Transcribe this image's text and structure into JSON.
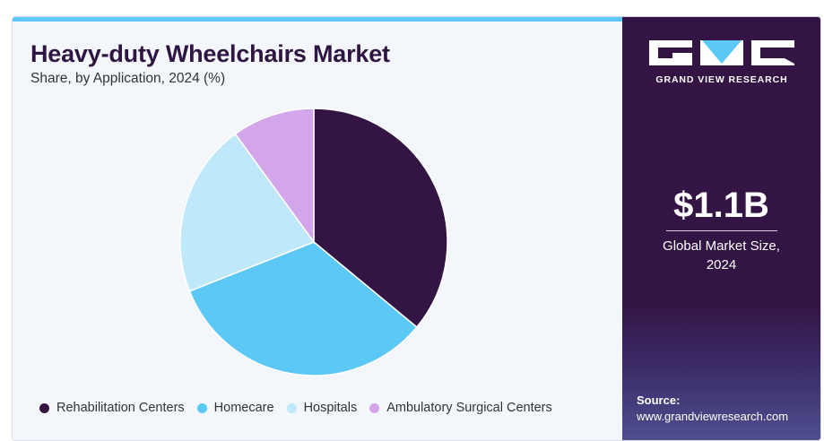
{
  "title": "Heavy-duty Wheelchairs Market",
  "subtitle": "Share, by Application, 2024 (%)",
  "brand": {
    "name": "GRAND VIEW RESEARCH",
    "logo_colors": [
      "#ffffff",
      "#5bc8f5"
    ]
  },
  "highlight": {
    "value": "$1.1B",
    "label_line1": "Global Market Size,",
    "label_line2": "2024"
  },
  "source": {
    "label": "Source:",
    "url": "www.grandviewresearch.com"
  },
  "chart_data": {
    "type": "pie",
    "title": "Heavy-duty Wheelchairs Market",
    "subtitle": "Share, by Application, 2024 (%)",
    "legend_position": "bottom",
    "categories": [
      "Rehabilitation Centers",
      "Homecare",
      "Hospitals",
      "Ambulatory Surgical Centers"
    ],
    "values": [
      36,
      33,
      21,
      10
    ],
    "colors": [
      "#341444",
      "#5bc8f5",
      "#bfe9fb",
      "#d3a6ec"
    ]
  }
}
